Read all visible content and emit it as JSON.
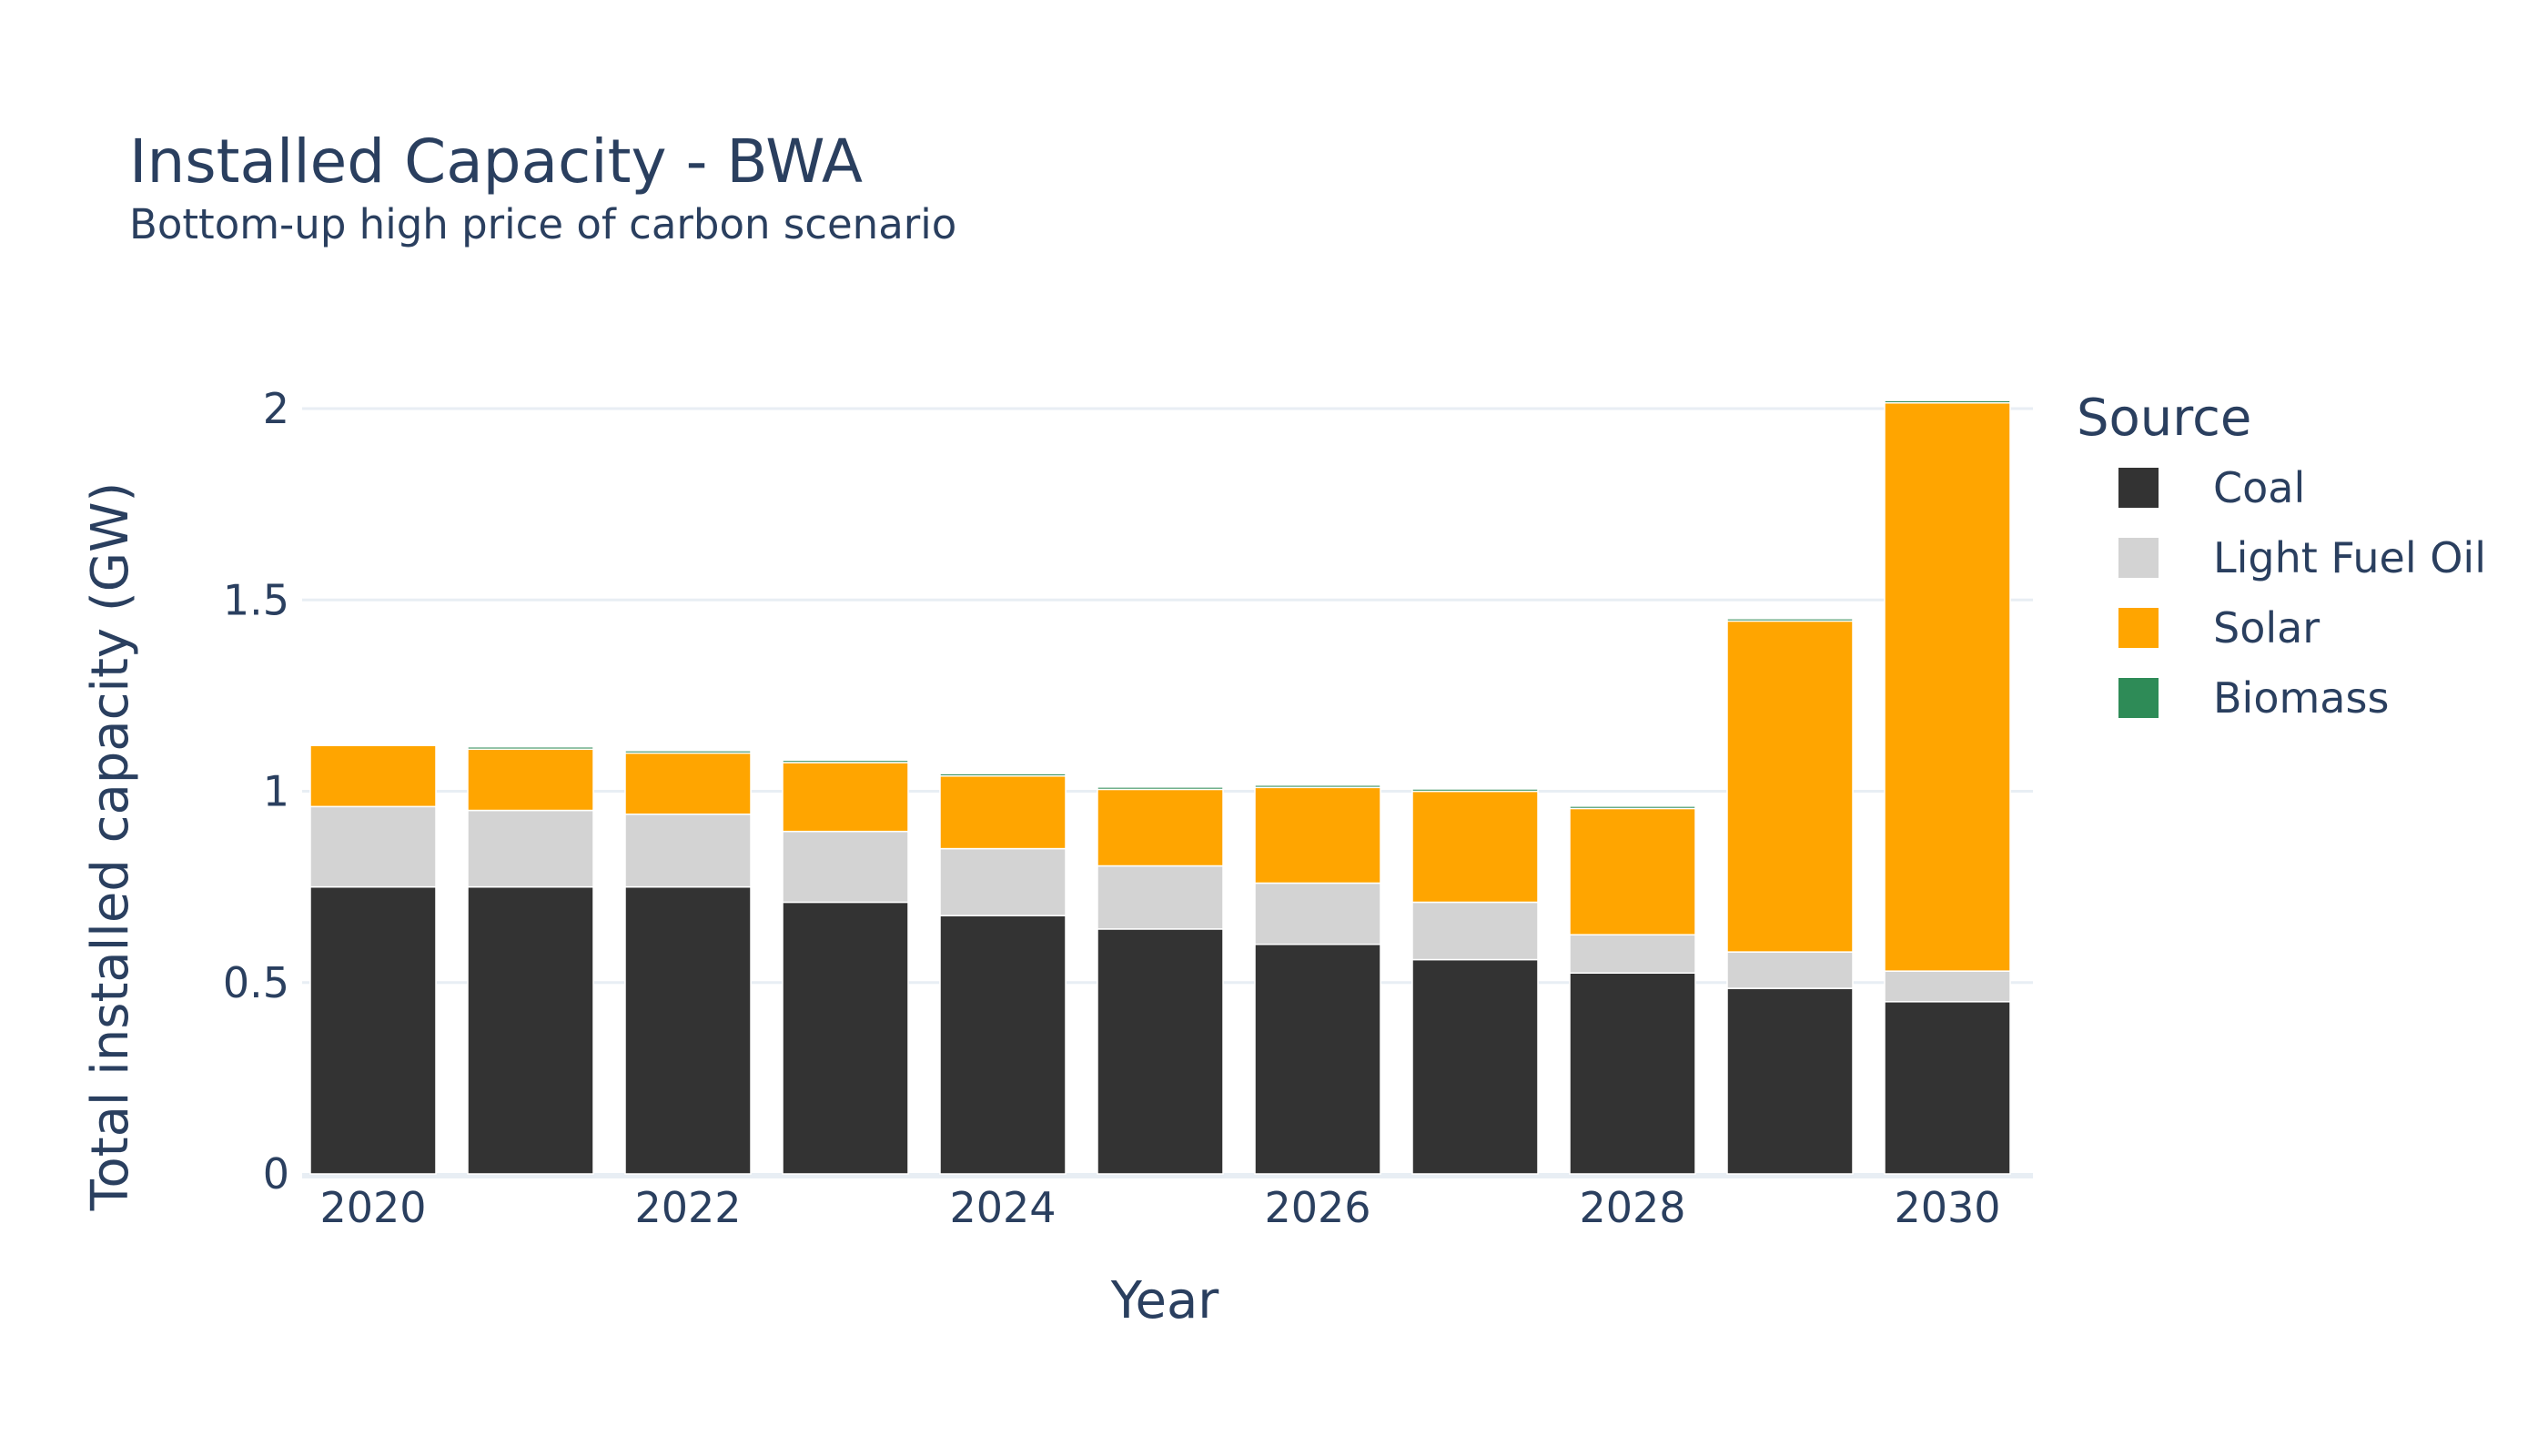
{
  "chart_data": {
    "type": "bar",
    "stacked": true,
    "title": "Installed Capacity - BWA",
    "subtitle": "Bottom-up high price of carbon scenario",
    "xlabel": "Year",
    "ylabel": "Total installed capacity (GW)",
    "legend_title": "Source",
    "legend_position": "right",
    "grid": true,
    "ylim": [
      0,
      2.1
    ],
    "x": [
      2020,
      2021,
      2022,
      2023,
      2024,
      2025,
      2026,
      2027,
      2028,
      2029,
      2030
    ],
    "x_ticks": [
      "2020",
      "2022",
      "2024",
      "2026",
      "2028",
      "2030"
    ],
    "y_ticks": [
      "0",
      "0.5",
      "1",
      "1.5",
      "2"
    ],
    "series": [
      {
        "name": "Coal",
        "color": "#333333",
        "values": [
          0.75,
          0.75,
          0.75,
          0.71,
          0.675,
          0.64,
          0.6,
          0.56,
          0.525,
          0.485,
          0.45
        ]
      },
      {
        "name": "Light Fuel Oil",
        "color": "#d3d3d3",
        "values": [
          0.21,
          0.2,
          0.19,
          0.185,
          0.175,
          0.165,
          0.16,
          0.15,
          0.1,
          0.095,
          0.08
        ]
      },
      {
        "name": "Solar",
        "color": "#ffa500",
        "values": [
          0.16,
          0.16,
          0.16,
          0.18,
          0.19,
          0.2,
          0.25,
          0.29,
          0.33,
          0.865,
          1.485
        ]
      },
      {
        "name": "Biomass",
        "color": "#2e8b57",
        "values": [
          0.003,
          0.006,
          0.006,
          0.006,
          0.006,
          0.006,
          0.006,
          0.006,
          0.006,
          0.006,
          0.006
        ]
      }
    ]
  }
}
